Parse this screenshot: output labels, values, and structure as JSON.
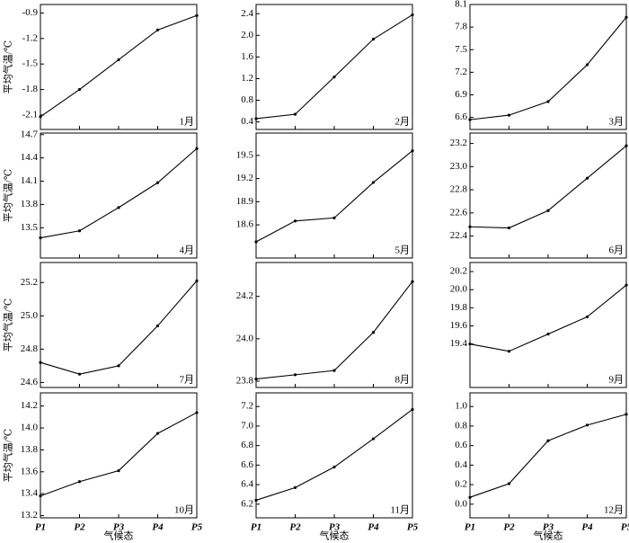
{
  "chart_data": [
    {
      "type": "line",
      "title": "1月",
      "y_label": "平均气温/℃",
      "values": [
        -2.12,
        -1.8,
        -1.45,
        -1.1,
        -0.93
      ],
      "color": "#000000",
      "ylim": [
        -2.27,
        -0.8
      ],
      "yticks": [
        -2.1,
        -1.8,
        -1.5,
        -1.2,
        -0.9
      ]
    },
    {
      "type": "line",
      "title": "2月",
      "values": [
        0.46,
        0.54,
        1.23,
        1.93,
        2.38
      ],
      "color": "#000000",
      "ylim": [
        0.26,
        2.57
      ],
      "yticks": [
        0.4,
        0.8,
        1.2,
        1.6,
        {
          "value": 2,
          "label": "2.0"
        },
        2.4
      ]
    },
    {
      "type": "line",
      "title": "3月",
      "values": [
        6.57,
        6.63,
        6.81,
        7.3,
        7.93
      ],
      "color": "#000000",
      "ylim": [
        6.44,
        8.1
      ],
      "yticks": [
        6.6,
        6.9,
        7.2,
        7.5,
        7.8,
        8.1
      ]
    },
    {
      "type": "line",
      "title": "4月",
      "y_label": "平均气温/℃",
      "values": [
        13.37,
        13.46,
        13.76,
        14.08,
        14.52
      ],
      "color": "#000000",
      "ylim": [
        13.11,
        14.72
      ],
      "yticks": [
        13.5,
        13.8,
        14.1,
        14.4,
        14.7
      ]
    },
    {
      "type": "line",
      "title": "5月",
      "values": [
        18.38,
        18.65,
        18.69,
        19.15,
        19.56
      ],
      "color": "#000000",
      "ylim": [
        18.17,
        19.79
      ],
      "yticks": [
        18.6,
        18.9,
        19.2,
        19.5
      ]
    },
    {
      "type": "line",
      "title": "6月",
      "values": [
        22.48,
        22.47,
        22.62,
        22.9,
        23.18
      ],
      "color": "#000000",
      "ylim": [
        22.21,
        23.29
      ],
      "yticks": [
        22.4,
        22.6,
        22.8,
        {
          "value": 23,
          "label": "23.0"
        },
        23.2
      ]
    },
    {
      "type": "line",
      "title": "7月",
      "y_label": "平均气温/℃",
      "values": [
        24.72,
        24.65,
        24.7,
        24.94,
        25.21
      ],
      "color": "#000000",
      "ylim": [
        24.57,
        25.32
      ],
      "yticks": [
        24.6,
        24.8,
        {
          "value": 25,
          "label": "25.0"
        },
        25.2
      ]
    },
    {
      "type": "line",
      "title": "8月",
      "values": [
        23.81,
        23.83,
        23.85,
        24.03,
        24.27
      ],
      "color": "#000000",
      "ylim": [
        23.77,
        24.36
      ],
      "yticks": [
        23.8,
        {
          "value": 24,
          "label": "24.0"
        },
        24.2
      ]
    },
    {
      "type": "line",
      "title": "9月",
      "values": [
        19.4,
        19.32,
        19.51,
        19.7,
        20.05
      ],
      "color": "#000000",
      "ylim": [
        18.92,
        20.3
      ],
      "yticks": [
        19.4,
        19.6,
        19.8,
        {
          "value": 20,
          "label": "20.0"
        },
        20.2
      ]
    },
    {
      "type": "line",
      "title": "10月",
      "y_label": "平均气温/℃",
      "x_label": "气候态",
      "categories": [
        "P1",
        "P2",
        "P3",
        "P4",
        "P5"
      ],
      "values": [
        13.38,
        13.51,
        13.61,
        13.95,
        14.14
      ],
      "color": "#000000",
      "ylim": [
        13.18,
        14.32
      ],
      "yticks": [
        13.2,
        13.4,
        13.6,
        13.8,
        {
          "value": 14,
          "label": "14.0"
        },
        14.2
      ]
    },
    {
      "type": "line",
      "title": "11月",
      "x_label": "气候态",
      "categories": [
        "P1",
        "P2",
        "P3",
        "P4",
        "P5"
      ],
      "values": [
        6.24,
        6.37,
        6.58,
        6.87,
        7.17
      ],
      "color": "#000000",
      "ylim": [
        6.06,
        7.34
      ],
      "yticks": [
        6.2,
        6.4,
        6.6,
        6.8,
        {
          "value": 7,
          "label": "7.0"
        },
        7.2
      ]
    },
    {
      "type": "line",
      "title": "12月",
      "x_label": "气候态",
      "categories": [
        "P1",
        "P2",
        "P3",
        "P4",
        "P5"
      ],
      "values": [
        0.07,
        0.21,
        0.65,
        0.81,
        0.92
      ],
      "color": "#000000",
      "ylim": [
        -0.14,
        1.14
      ],
      "yticks": [
        {
          "value": 0,
          "label": "0.0"
        },
        0.2,
        0.4,
        0.6,
        0.8,
        {
          "value": 1,
          "label": "1.0"
        }
      ]
    }
  ]
}
